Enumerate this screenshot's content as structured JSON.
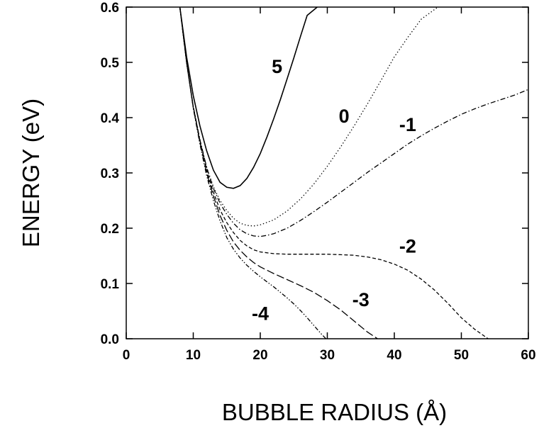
{
  "chart_data": {
    "type": "line",
    "title": "",
    "xlabel": "BUBBLE RADIUS (Å)",
    "ylabel": "ENERGY (eV)",
    "xlim": [
      0,
      60
    ],
    "ylim": [
      0,
      0.6
    ],
    "x_ticks": [
      "0",
      "10",
      "20",
      "30",
      "40",
      "50",
      "60"
    ],
    "y_ticks": [
      "0.0",
      "0.1",
      "0.2",
      "0.3",
      "0.4",
      "0.5",
      "0.6"
    ],
    "grid": false,
    "legend": "none",
    "series": [
      {
        "name": "5",
        "dash": "solid",
        "x": [
          8.0,
          9,
          10,
          11,
          12,
          13,
          14,
          15,
          16,
          17,
          18,
          19,
          20,
          21,
          22,
          23,
          24,
          25,
          26,
          27,
          28.5
        ],
        "y": [
          0.6,
          0.51,
          0.44,
          0.385,
          0.34,
          0.305,
          0.283,
          0.274,
          0.272,
          0.277,
          0.29,
          0.31,
          0.335,
          0.365,
          0.398,
          0.433,
          0.47,
          0.508,
          0.547,
          0.585,
          0.6
        ]
      },
      {
        "name": "0",
        "dash": "dotted",
        "x": [
          8.0,
          9,
          10,
          11,
          12,
          13,
          14,
          15,
          16,
          17,
          18,
          19,
          20,
          22,
          24,
          26,
          28,
          30,
          32,
          34,
          36,
          38,
          40,
          42,
          44,
          46.5
        ],
        "y": [
          0.6,
          0.5,
          0.42,
          0.36,
          0.31,
          0.275,
          0.25,
          0.232,
          0.218,
          0.209,
          0.205,
          0.204,
          0.206,
          0.215,
          0.231,
          0.253,
          0.28,
          0.312,
          0.347,
          0.385,
          0.425,
          0.467,
          0.51,
          0.545,
          0.578,
          0.6
        ]
      },
      {
        "name": "-1",
        "dash": "dashdot",
        "x": [
          8.0,
          9,
          10,
          11,
          12,
          13,
          14,
          15,
          16,
          17,
          18,
          19,
          20,
          21,
          22,
          24,
          26,
          28,
          30,
          32,
          34,
          36,
          38,
          40,
          42,
          44,
          46,
          48,
          50,
          52,
          54,
          56,
          58,
          60
        ],
        "y": [
          0.6,
          0.5,
          0.42,
          0.36,
          0.31,
          0.272,
          0.245,
          0.225,
          0.209,
          0.197,
          0.19,
          0.186,
          0.185,
          0.187,
          0.19,
          0.2,
          0.214,
          0.23,
          0.247,
          0.265,
          0.283,
          0.301,
          0.318,
          0.335,
          0.352,
          0.367,
          0.381,
          0.394,
          0.406,
          0.416,
          0.425,
          0.433,
          0.441,
          0.451
        ]
      },
      {
        "name": "-2",
        "dash": "dashed",
        "x": [
          8.0,
          9,
          10,
          11,
          12,
          13,
          14,
          15,
          16,
          17,
          18,
          19,
          20,
          22,
          24,
          26,
          28,
          30,
          32,
          34,
          36,
          38,
          40,
          42,
          44,
          46,
          48,
          50,
          52,
          54
        ],
        "y": [
          0.6,
          0.5,
          0.42,
          0.358,
          0.305,
          0.265,
          0.233,
          0.21,
          0.192,
          0.178,
          0.168,
          0.161,
          0.157,
          0.154,
          0.153,
          0.153,
          0.153,
          0.153,
          0.152,
          0.151,
          0.148,
          0.143,
          0.135,
          0.124,
          0.108,
          0.088,
          0.064,
          0.038,
          0.017,
          0.0
        ]
      },
      {
        "name": "-3",
        "dash": "longdash",
        "x": [
          8.0,
          9,
          10,
          11,
          12,
          13,
          14,
          15,
          16,
          17,
          18,
          19,
          20,
          22,
          24,
          26,
          28,
          30,
          32,
          34,
          36,
          37.5
        ],
        "y": [
          0.6,
          0.5,
          0.418,
          0.355,
          0.3,
          0.258,
          0.223,
          0.196,
          0.175,
          0.16,
          0.148,
          0.138,
          0.13,
          0.118,
          0.107,
          0.096,
          0.084,
          0.069,
          0.052,
          0.032,
          0.012,
          0.0
        ]
      },
      {
        "name": "-4",
        "dash": "dashdotdot",
        "x": [
          8.0,
          9,
          10,
          11,
          12,
          13,
          14,
          15,
          16,
          17,
          18,
          19,
          20,
          21,
          22,
          23,
          24,
          25,
          26,
          27,
          28,
          29,
          29.8
        ],
        "y": [
          0.6,
          0.5,
          0.417,
          0.352,
          0.295,
          0.25,
          0.213,
          0.183,
          0.162,
          0.146,
          0.133,
          0.122,
          0.112,
          0.103,
          0.094,
          0.084,
          0.074,
          0.063,
          0.051,
          0.038,
          0.024,
          0.01,
          0.0
        ]
      }
    ],
    "annotations": [
      {
        "text": "5",
        "x": 22.5,
        "y": 0.49
      },
      {
        "text": "0",
        "x": 32.5,
        "y": 0.4
      },
      {
        "text": "-1",
        "x": 42.0,
        "y": 0.385
      },
      {
        "text": "-2",
        "x": 42.0,
        "y": 0.165
      },
      {
        "text": "-3",
        "x": 35.0,
        "y": 0.068
      },
      {
        "text": "-4",
        "x": 20.0,
        "y": 0.043
      }
    ]
  }
}
